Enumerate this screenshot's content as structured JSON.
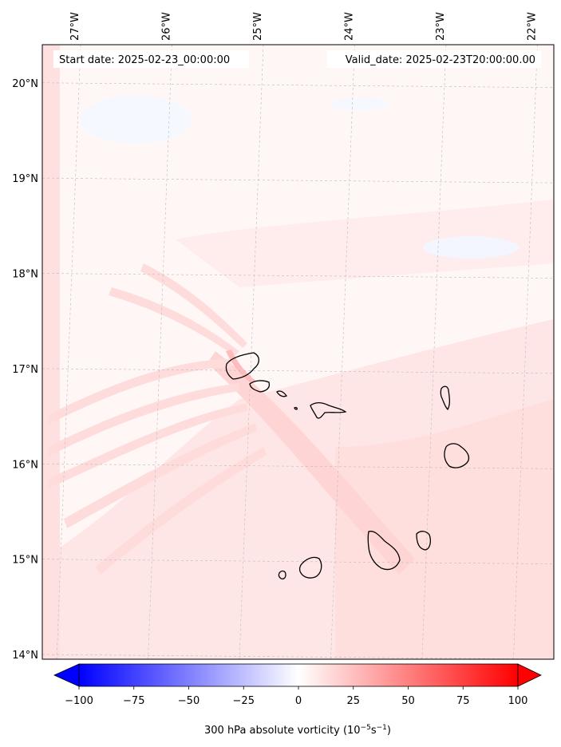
{
  "header": {
    "start_date": "Start date: 2025-02-23_00:00:00",
    "valid_date": "Valid_date: 2025-02-23T20:00:00.00"
  },
  "map": {
    "lon_range": [
      -27.35,
      -21.75
    ],
    "lat_range": [
      13.95,
      20.4
    ],
    "lon_ticks": [
      {
        "value": -27,
        "label": "27°W"
      },
      {
        "value": -26,
        "label": "26°W"
      },
      {
        "value": -25,
        "label": "25°W"
      },
      {
        "value": -24,
        "label": "24°W"
      },
      {
        "value": -23,
        "label": "23°W"
      },
      {
        "value": -22,
        "label": "22°W"
      }
    ],
    "lat_ticks": [
      {
        "value": 20,
        "label": "20°N"
      },
      {
        "value": 19,
        "label": "19°N"
      },
      {
        "value": 18,
        "label": "18°N"
      },
      {
        "value": 17,
        "label": "17°N"
      },
      {
        "value": 16,
        "label": "16°N"
      },
      {
        "value": 15,
        "label": "15°N"
      },
      {
        "value": 14,
        "label": "14°N"
      }
    ]
  },
  "colorbar": {
    "min": -100,
    "max": 100,
    "ticks": [
      {
        "value": -100,
        "label": "−100"
      },
      {
        "value": -75,
        "label": "−75"
      },
      {
        "value": -50,
        "label": "−50"
      },
      {
        "value": -25,
        "label": "−25"
      },
      {
        "value": 0,
        "label": "0"
      },
      {
        "value": 25,
        "label": "25"
      },
      {
        "value": 50,
        "label": "50"
      },
      {
        "value": 75,
        "label": "75"
      },
      {
        "value": 100,
        "label": "100"
      }
    ],
    "label_prefix": "300 hPa absolute vorticity (10",
    "label_exp1": "−5",
    "label_mid": "s",
    "label_exp2": "−1",
    "label_suffix": ")",
    "colors": {
      "negative_end": "#0000ff",
      "zero": "#ffffff",
      "positive_end": "#ff0000"
    }
  }
}
